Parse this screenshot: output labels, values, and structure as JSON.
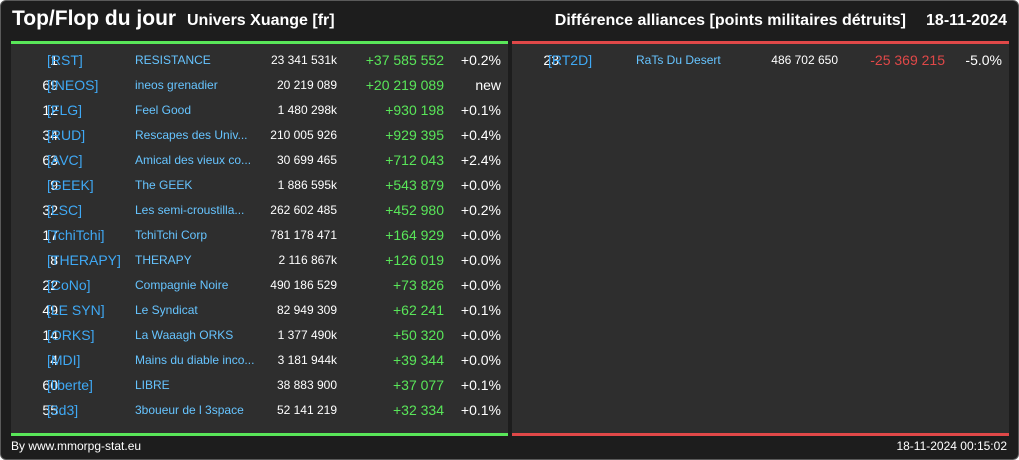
{
  "header": {
    "title": "Top/Flop du jour",
    "universe": "Univers Xuange [fr]",
    "heading": "Différence alliances [points militaires détruits]",
    "date": "18-11-2024"
  },
  "colors": {
    "up": "#59e659",
    "down": "#e04848",
    "tag": "#3fa9f5",
    "name": "#66c4ff",
    "panel": "#2e2e2e",
    "background": "#1d1d1d"
  },
  "top": [
    {
      "rank": "1",
      "tag": "[RST]",
      "name": "RESISTANCE",
      "points": "23 341 531k",
      "diff": "+37 585 552",
      "pct": "+0.2%"
    },
    {
      "rank": "69",
      "tag": "[INEOS]",
      "name": "ineos grenadier",
      "points": "20 219 089",
      "diff": "+20 219 089",
      "pct": "new"
    },
    {
      "rank": "12",
      "tag": "[FLG]",
      "name": "Feel Good",
      "points": "1 480 298k",
      "diff": "+930 198",
      "pct": "+0.1%"
    },
    {
      "rank": "34",
      "tag": "[RUD]",
      "name": "Rescapes des Univ...",
      "points": "210 005 926",
      "diff": "+929 395",
      "pct": "+0.4%"
    },
    {
      "rank": "63",
      "tag": "[AVC]",
      "name": "Amical des vieux co...",
      "points": "30 699 465",
      "diff": "+712 043",
      "pct": "+2.4%"
    },
    {
      "rank": "9",
      "tag": "[GEEK]",
      "name": "The GEEK",
      "points": "1 886 595k",
      "diff": "+543 879",
      "pct": "+0.0%"
    },
    {
      "rank": "32",
      "tag": "[LSC]",
      "name": "Les semi-croustilla...",
      "points": "262 602 485",
      "diff": "+452 980",
      "pct": "+0.2%"
    },
    {
      "rank": "17",
      "tag": "[TchiTchi]",
      "name": "TchiTchi Corp",
      "points": "781 178 471",
      "diff": "+164 929",
      "pct": "+0.0%"
    },
    {
      "rank": "8",
      "tag": "[THERAPY]",
      "name": "THERAPY",
      "points": "2 116 867k",
      "diff": "+126 019",
      "pct": "+0.0%"
    },
    {
      "rank": "22",
      "tag": "[CoNo]",
      "name": "Compagnie Noire",
      "points": "490 186 529",
      "diff": "+73 826",
      "pct": "+0.0%"
    },
    {
      "rank": "49",
      "tag": "[LE SYN]",
      "name": "Le Syndicat",
      "points": "82 949 309",
      "diff": "+62 241",
      "pct": "+0.1%"
    },
    {
      "rank": "14",
      "tag": "[ORKS]",
      "name": "La Waaagh ORKS",
      "points": "1 377 490k",
      "diff": "+50 320",
      "pct": "+0.0%"
    },
    {
      "rank": "4",
      "tag": "[MDI]",
      "name": "Mains du diable inco...",
      "points": "3 181 944k",
      "diff": "+39 344",
      "pct": "+0.0%"
    },
    {
      "rank": "60",
      "tag": "[liberte]",
      "name": "LIBRE",
      "points": "38 883 900",
      "diff": "+37 077",
      "pct": "+0.1%"
    },
    {
      "rank": "55",
      "tag": "[3d3]",
      "name": "3boueur de l 3space",
      "points": "52 141 219",
      "diff": "+32 334",
      "pct": "+0.1%"
    }
  ],
  "flop": [
    {
      "rank": "23",
      "tag": "[RT2D]",
      "name": "RaTs Du Desert",
      "points": "486 702 650",
      "diff": "-25 369 215",
      "pct": "-5.0%"
    }
  ],
  "footer": {
    "source": "By www.mmorpg-stat.eu",
    "timestamp": "18-11-2024 00:15:02"
  }
}
